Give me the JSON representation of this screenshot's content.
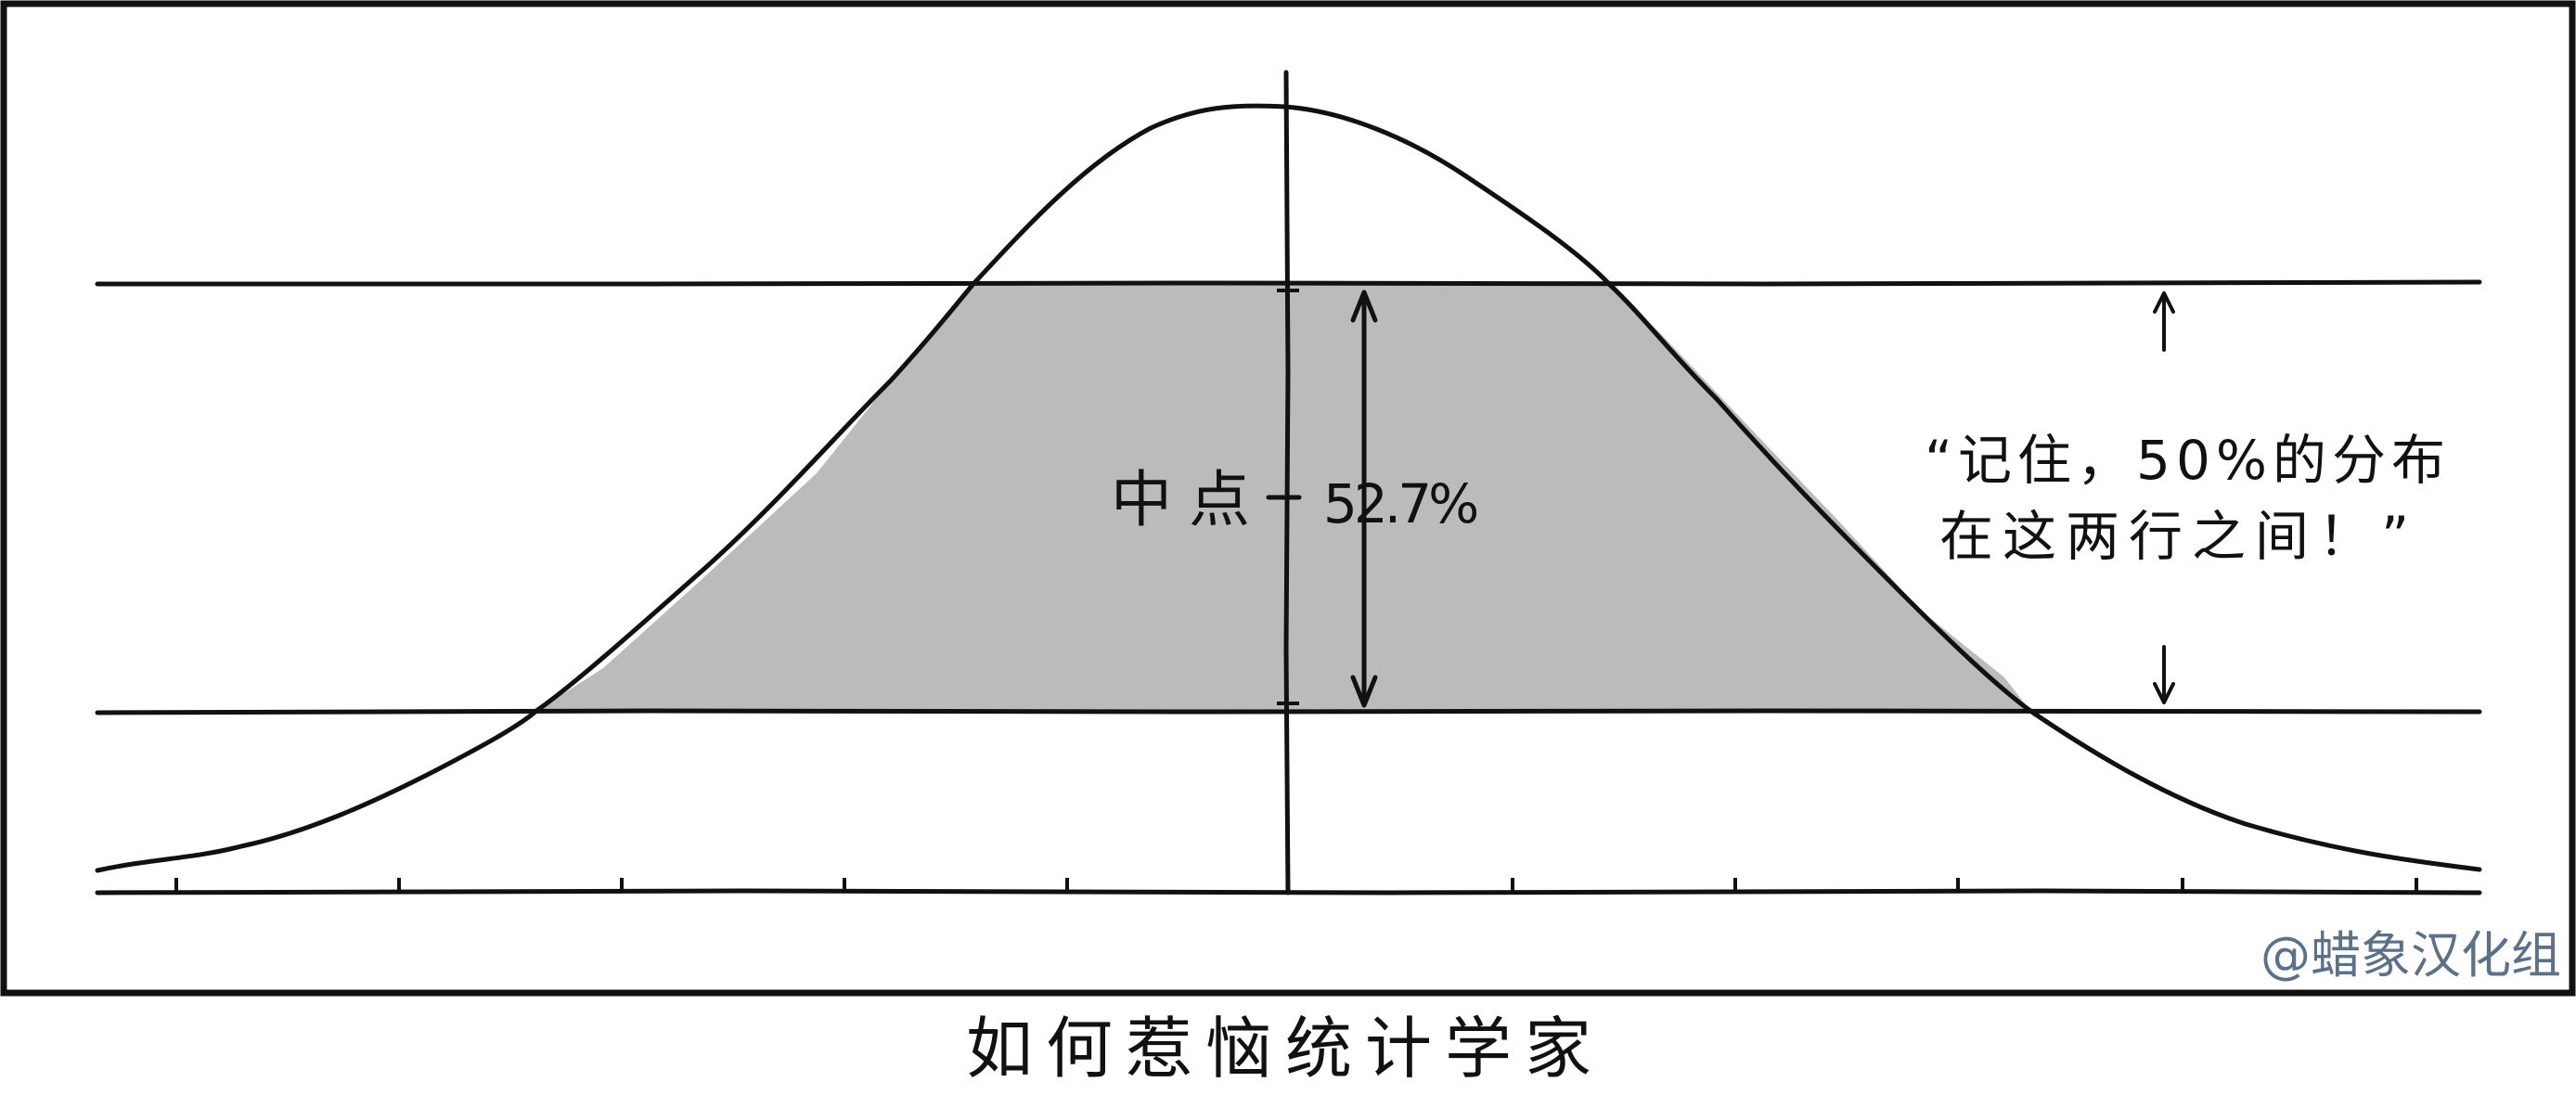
{
  "colors": {
    "ink": "#111111",
    "shade": "#bbbbbb",
    "paper": "#ffffff",
    "watermark": "#5b7189"
  },
  "panel": {
    "midpoint_label": "中点",
    "percent_label": "52.7%",
    "quote_line1": "“记住，50%的分布",
    "quote_line2": "在这两行之间！”",
    "watermark": "@蜡象汉化组"
  },
  "caption": "如何惹恼统计学家"
}
